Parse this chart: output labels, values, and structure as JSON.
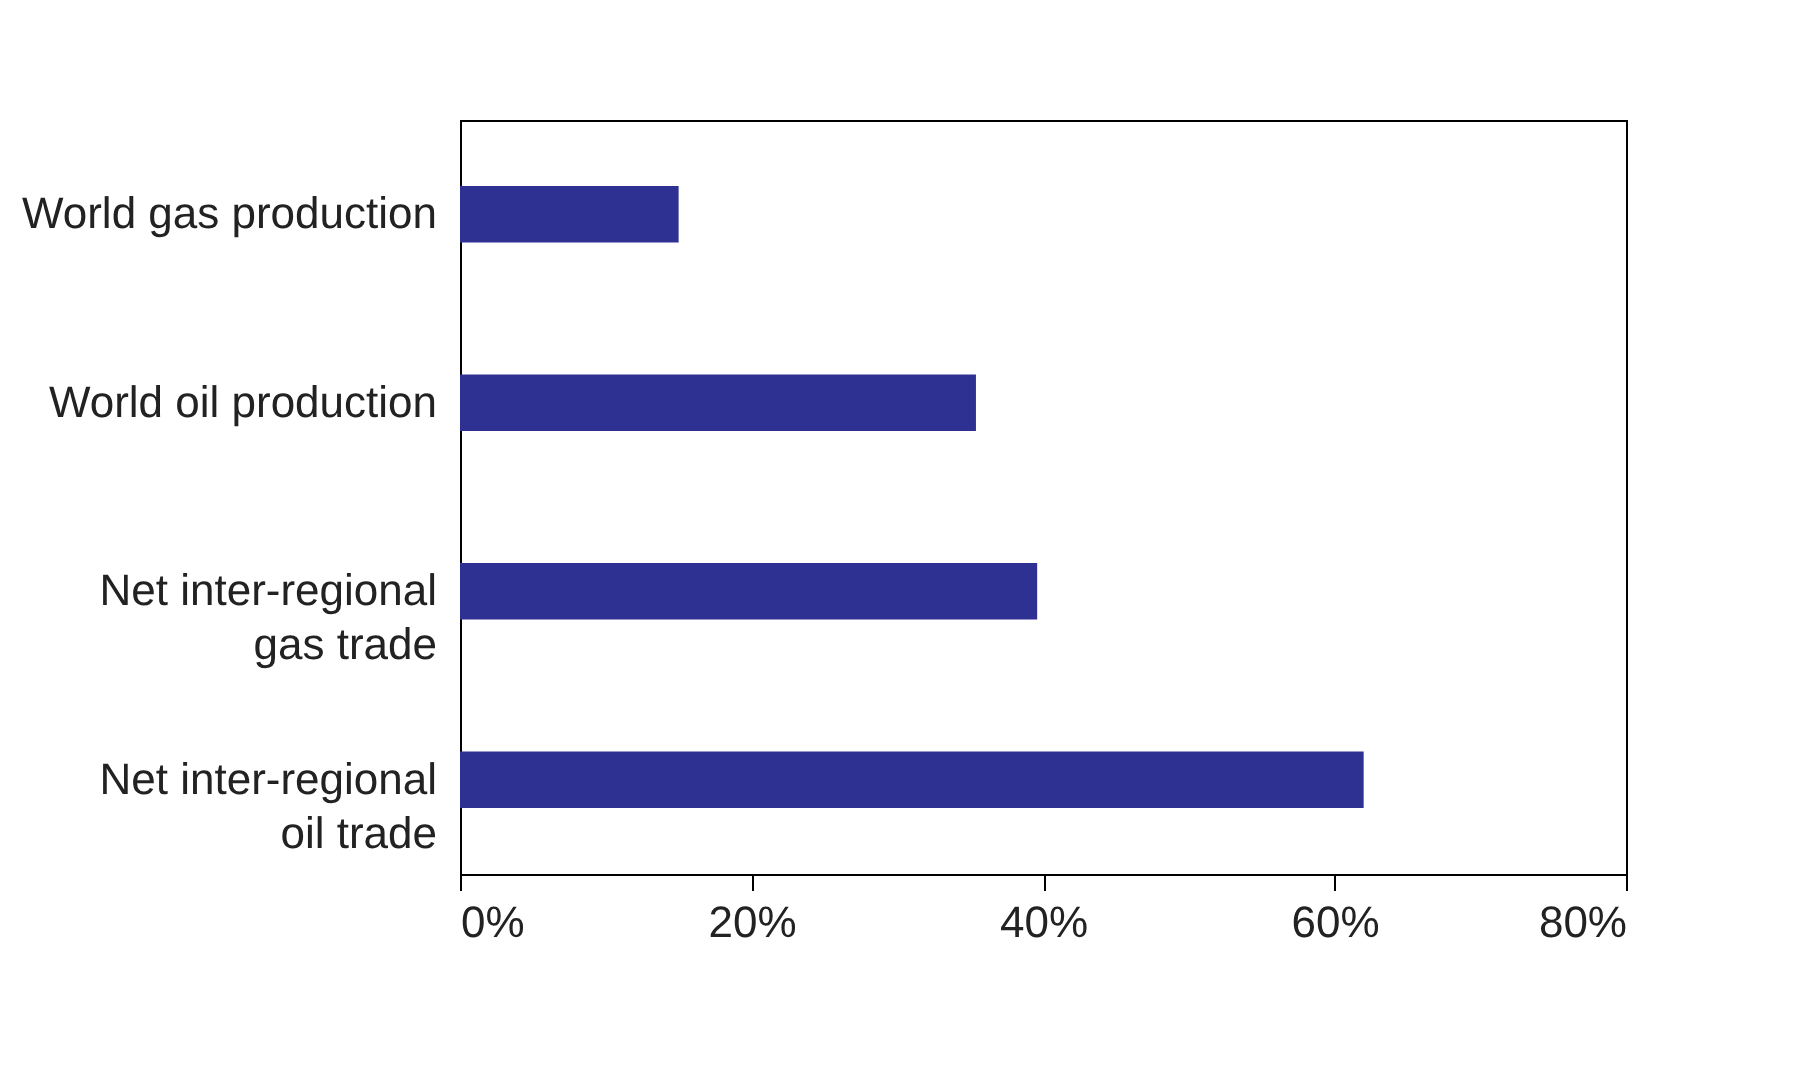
{
  "chart_data": {
    "type": "bar",
    "orientation": "horizontal",
    "categories": [
      "World gas production",
      "World oil production",
      "Net inter-regional\ngas trade",
      "Net inter-regional\noil trade"
    ],
    "values": [
      15,
      35.4,
      39.6,
      62
    ],
    "color": "#2e3192",
    "xlim": [
      0,
      80
    ],
    "xticks": [
      {
        "value": 0,
        "label": "0%"
      },
      {
        "value": 20,
        "label": "20%"
      },
      {
        "value": 40,
        "label": "40%"
      },
      {
        "value": 60,
        "label": "60%"
      },
      {
        "value": 80,
        "label": "80%"
      }
    ],
    "grid": false
  }
}
